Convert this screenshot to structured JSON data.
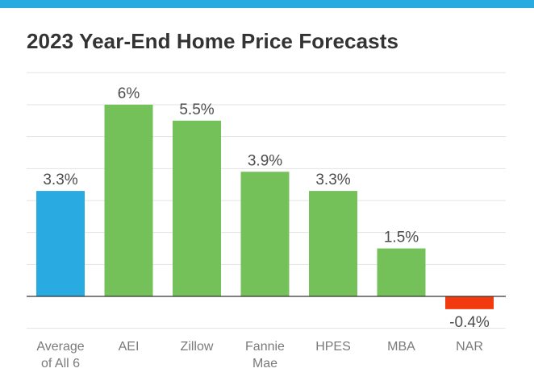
{
  "colors": {
    "top_bar": "#29abe2",
    "average": "#29abe2",
    "positive": "#74c059",
    "negative": "#f23a0f",
    "grid": "#e3e3e3",
    "baseline": "#333333"
  },
  "chart_data": {
    "type": "bar",
    "title": "2023 Year-End Home Price Forecasts",
    "xlabel": "",
    "ylabel": "",
    "ylim": [
      -1,
      7
    ],
    "grid": true,
    "categories": [
      [
        "Average",
        "of All 6"
      ],
      [
        "AEI"
      ],
      [
        "Zillow"
      ],
      [
        "Fannie",
        "Mae"
      ],
      [
        "HPES"
      ],
      [
        "MBA"
      ],
      [
        "NAR"
      ]
    ],
    "values": [
      3.3,
      6,
      5.5,
      3.9,
      3.3,
      1.5,
      -0.4
    ],
    "value_labels": [
      "3.3%",
      "6%",
      "5.5%",
      "3.9%",
      "3.3%",
      "1.5%",
      "-0.4%"
    ],
    "bar_colors": [
      "#29abe2",
      "#74c059",
      "#74c059",
      "#74c059",
      "#74c059",
      "#74c059",
      "#f23a0f"
    ]
  }
}
